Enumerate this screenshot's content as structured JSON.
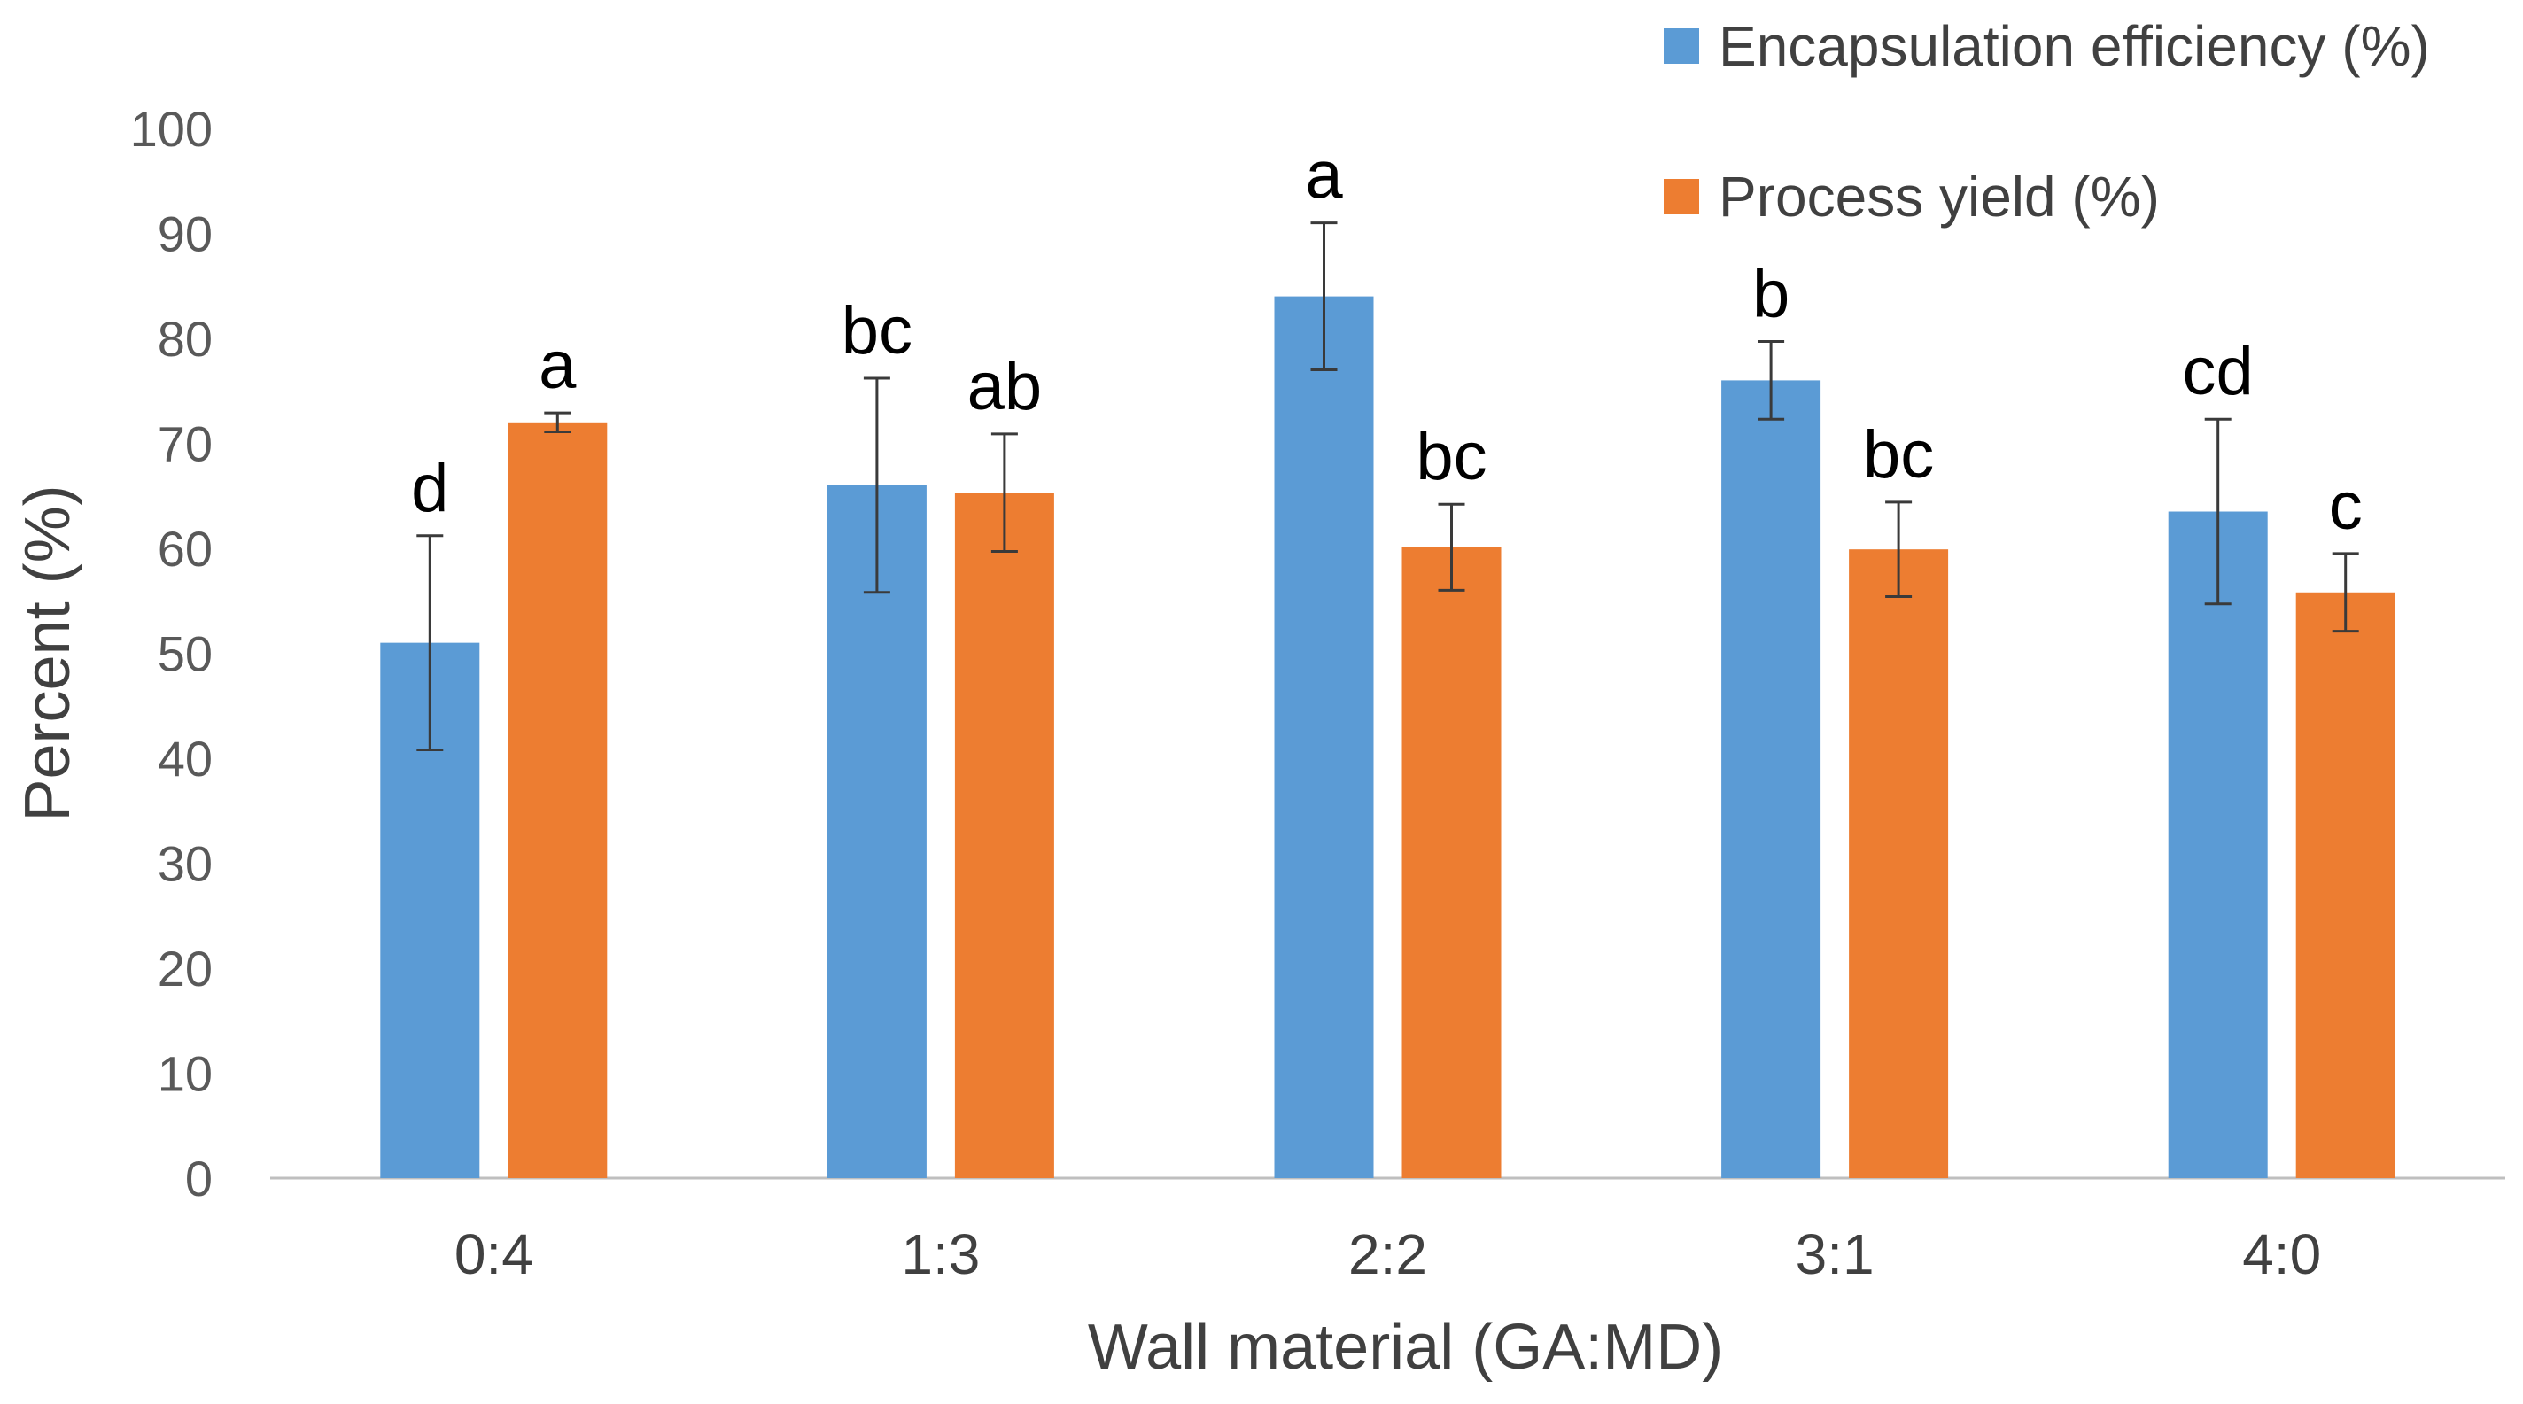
{
  "chart_data": {
    "type": "bar",
    "title": "",
    "xlabel": "Wall material (GA:MD)",
    "ylabel": "Percent (%)",
    "ylim": [
      0,
      100
    ],
    "yticks": [
      0,
      10,
      20,
      30,
      40,
      50,
      60,
      70,
      80,
      90,
      100
    ],
    "grid": false,
    "legend_position": "top-right",
    "categories": [
      "0:4",
      "1:3",
      "2:2",
      "3:1",
      "4:0"
    ],
    "series": [
      {
        "name": "Encapsulation efficiency (%)",
        "color": "#5b9bd5",
        "values": [
          51.0,
          66.0,
          84.0,
          76.0,
          63.5
        ],
        "errors": [
          10.2,
          10.2,
          7.0,
          3.7,
          8.8
        ],
        "letters": [
          "d",
          "bc",
          "a",
          "b",
          "cd"
        ]
      },
      {
        "name": "Process yield (%)",
        "color": "#ed7d31",
        "values": [
          72.0,
          65.3,
          60.1,
          59.9,
          55.8
        ],
        "errors": [
          0.9,
          5.6,
          4.1,
          4.5,
          3.7
        ],
        "letters": [
          "a",
          "ab",
          "bc",
          "bc",
          "c"
        ]
      }
    ]
  }
}
